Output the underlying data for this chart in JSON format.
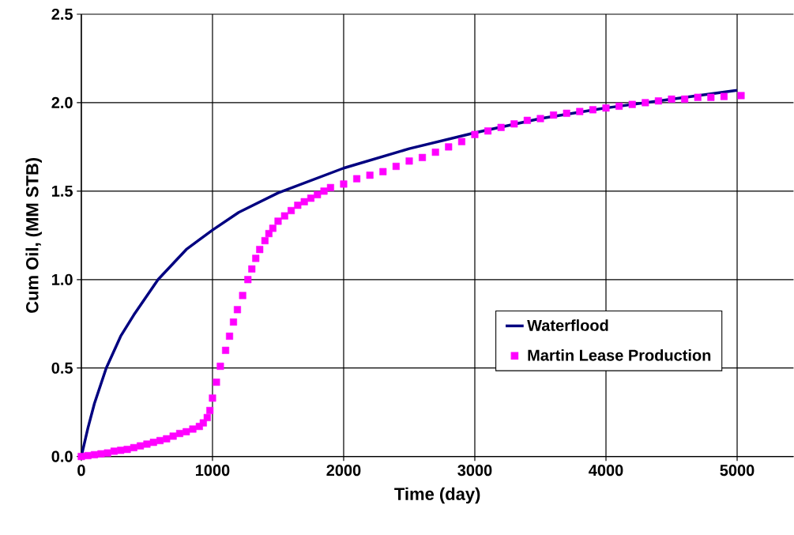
{
  "chart_data": {
    "type": "line",
    "xlabel": "Time (day)",
    "ylabel": "Cum Oil, (MM STB)",
    "xlim": [
      0,
      5430
    ],
    "ylim": [
      0,
      2.5
    ],
    "xticks": [
      0,
      1000,
      2000,
      3000,
      4000,
      5000
    ],
    "yticks": [
      {
        "value": 0,
        "label": "0.0"
      },
      {
        "value": 0.5,
        "label": "0.5"
      },
      {
        "value": 1,
        "label": "1.0"
      },
      {
        "value": 1.5,
        "label": "1.5"
      },
      {
        "value": 2,
        "label": "2.0"
      },
      {
        "value": 2.5,
        "label": "2.5"
      }
    ],
    "grid": true,
    "legend": "bottom right",
    "series": [
      {
        "name": "Waterflood",
        "marker": "none",
        "color": "#000080",
        "x": [
          0,
          50,
          100,
          190,
          300,
          400,
          585,
          800,
          1000,
          1200,
          1500,
          2000,
          2500,
          3000,
          3500,
          4000,
          4500,
          5000
        ],
        "values": [
          0,
          0.16,
          0.3,
          0.5,
          0.68,
          0.8,
          1.0,
          1.17,
          1.28,
          1.38,
          1.49,
          1.63,
          1.74,
          1.83,
          1.91,
          1.97,
          2.02,
          2.07
        ]
      },
      {
        "name": "Martin Lease Production",
        "type": "scatter",
        "marker": "square",
        "color": "#ff00ff",
        "x": [
          0,
          50,
          100,
          150,
          200,
          250,
          300,
          350,
          400,
          450,
          500,
          550,
          600,
          650,
          700,
          750,
          800,
          850,
          900,
          930,
          960,
          980,
          1000,
          1030,
          1060,
          1100,
          1130,
          1160,
          1190,
          1230,
          1270,
          1300,
          1330,
          1360,
          1400,
          1430,
          1460,
          1500,
          1550,
          1600,
          1650,
          1700,
          1750,
          1800,
          1850,
          1900,
          2000,
          2100,
          2200,
          2300,
          2400,
          2500,
          2600,
          2700,
          2800,
          2900,
          3000,
          3100,
          3200,
          3300,
          3400,
          3500,
          3600,
          3700,
          3800,
          3900,
          4000,
          4100,
          4200,
          4300,
          4400,
          4500,
          4600,
          4700,
          4800,
          4900,
          5030
        ],
        "values": [
          0,
          0.005,
          0.01,
          0.015,
          0.02,
          0.03,
          0.035,
          0.04,
          0.05,
          0.06,
          0.07,
          0.08,
          0.09,
          0.1,
          0.115,
          0.13,
          0.14,
          0.155,
          0.17,
          0.19,
          0.22,
          0.26,
          0.33,
          0.42,
          0.51,
          0.6,
          0.68,
          0.76,
          0.83,
          0.91,
          1.0,
          1.06,
          1.12,
          1.17,
          1.22,
          1.26,
          1.29,
          1.33,
          1.36,
          1.39,
          1.42,
          1.44,
          1.46,
          1.48,
          1.5,
          1.52,
          1.54,
          1.57,
          1.59,
          1.61,
          1.64,
          1.67,
          1.69,
          1.72,
          1.75,
          1.78,
          1.82,
          1.84,
          1.86,
          1.88,
          1.9,
          1.91,
          1.93,
          1.94,
          1.95,
          1.96,
          1.97,
          1.98,
          1.99,
          2.0,
          2.01,
          2.02,
          2.02,
          2.03,
          2.03,
          2.035,
          2.04
        ]
      }
    ]
  }
}
